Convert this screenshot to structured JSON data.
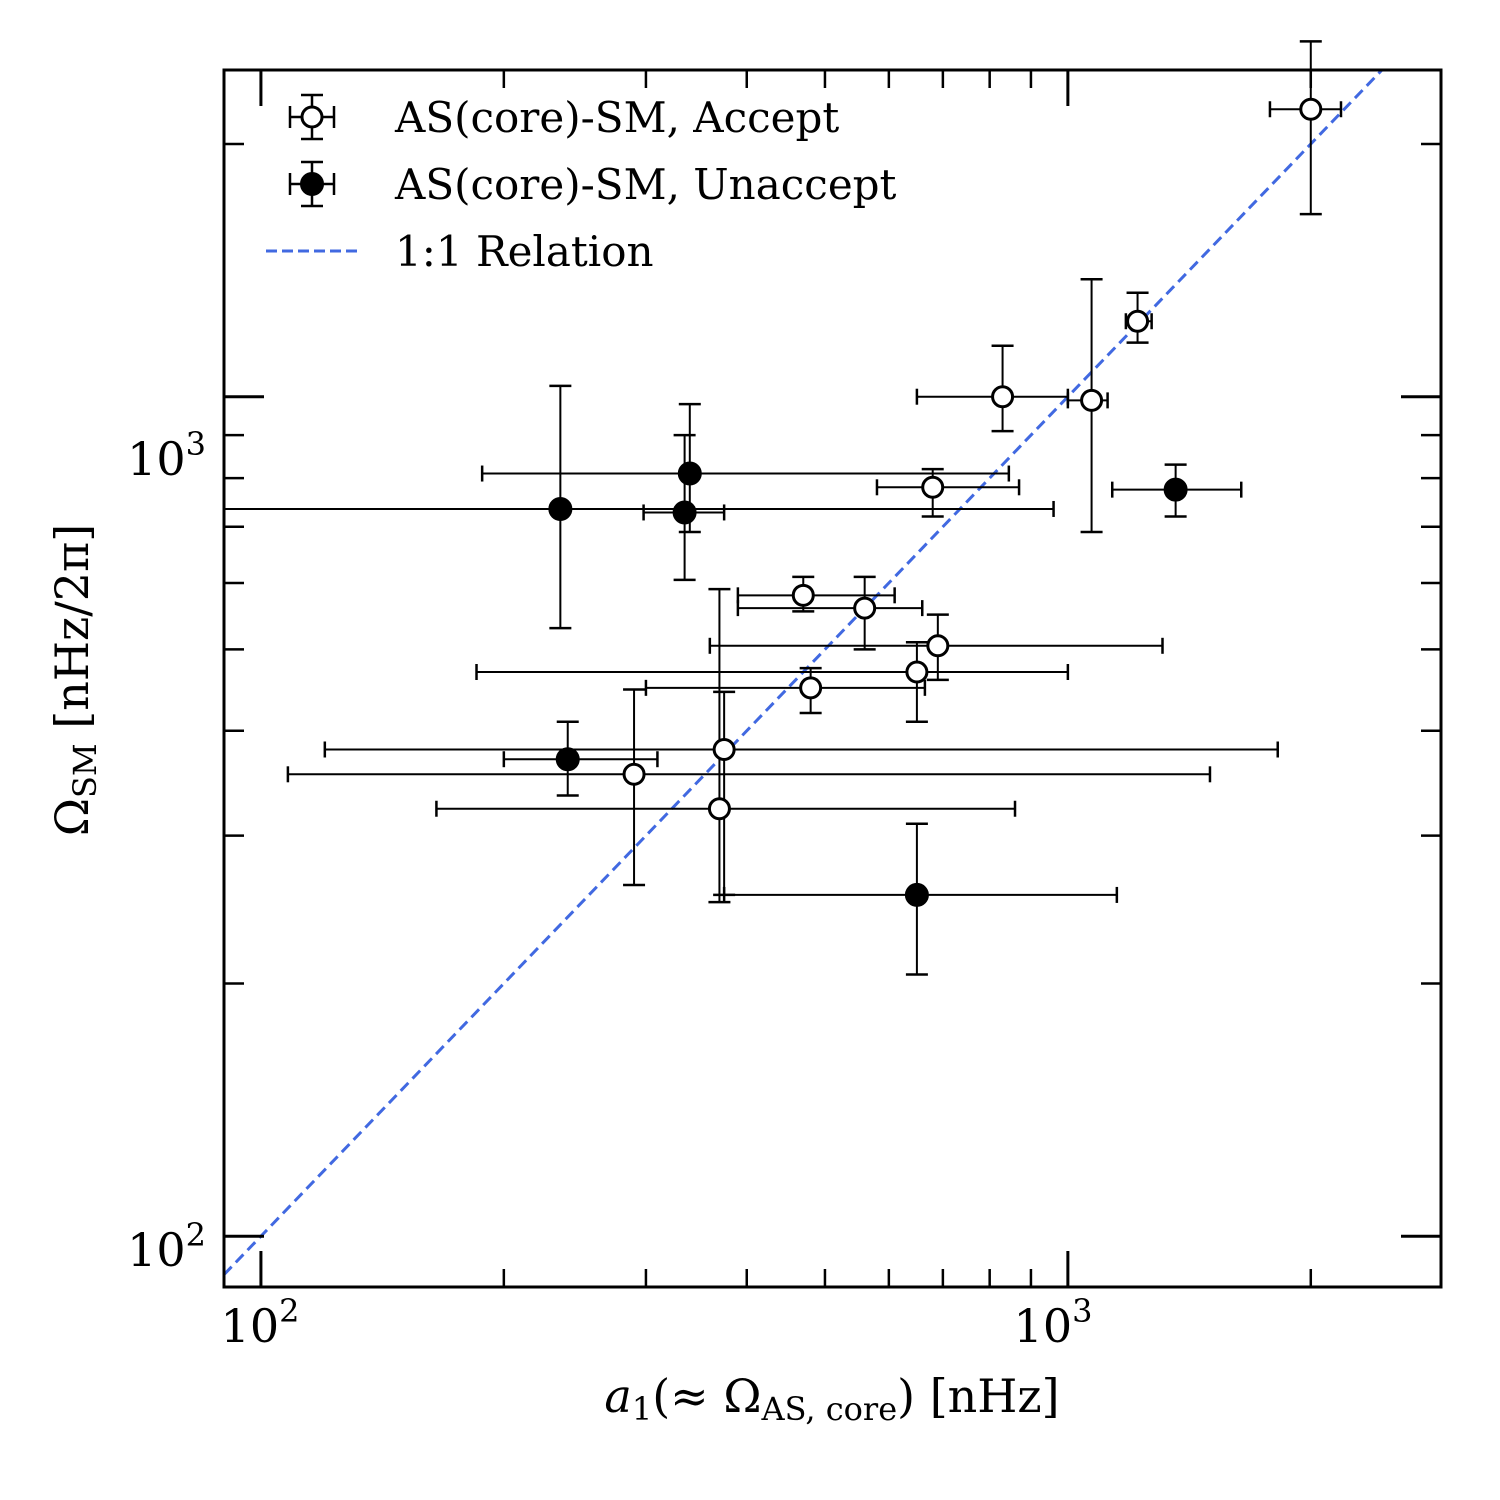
{
  "chart_data": {
    "type": "scatter",
    "title": "",
    "xlabel": {
      "main": "a",
      "sub1": "1",
      "mid": "(≈ Ω",
      "sub2": "AS, core",
      "end": ") [nHz]"
    },
    "ylabel": {
      "main": "Ω",
      "sub": "SM",
      "end": " [nHz/2π]"
    },
    "x_scale": "log",
    "y_scale": "log",
    "xlim": [
      90,
      2900
    ],
    "ylim": [
      87,
      2450
    ],
    "x_ticks": [
      {
        "base": "10",
        "exp": "2",
        "value": 100
      },
      {
        "base": "10",
        "exp": "3",
        "value": 1000
      }
    ],
    "y_ticks": [
      {
        "base": "10",
        "exp": "2",
        "value": 100
      },
      {
        "base": "10",
        "exp": "3",
        "value": 1000
      }
    ],
    "grid": false,
    "legend_position": "top-left",
    "legend": [
      {
        "label": "AS(core)-SM, Accept",
        "style": "open-marker"
      },
      {
        "label": "AS(core)-SM, Unaccept",
        "style": "filled-marker"
      },
      {
        "label": "1:1 Relation",
        "style": "dashed-line"
      }
    ],
    "colors": {
      "one_to_one": "#4169e1",
      "marker": "#000000"
    },
    "reference_line": {
      "name": "1:1 Relation",
      "slope": 1
    },
    "series": [
      {
        "name": "AS(core)-SM, Accept",
        "points": [
          {
            "x": 2000,
            "y": 2200,
            "x_err": [
              1780,
              2180
            ],
            "y_err": [
              1650,
              2650
            ]
          },
          {
            "x": 1220,
            "y": 1230,
            "x_err": [
              1180,
              1270
            ],
            "y_err": [
              1160,
              1330
            ]
          },
          {
            "x": 830,
            "y": 1000,
            "x_err": [
              650,
              1000
            ],
            "y_err": [
              910,
              1150
            ]
          },
          {
            "x": 1070,
            "y": 990,
            "x_err": [
              1000,
              1120
            ],
            "y_err": [
              690,
              1380
            ]
          },
          {
            "x": 680,
            "y": 780,
            "x_err": [
              580,
              870
            ],
            "y_err": [
              720,
              820
            ]
          },
          {
            "x": 470,
            "y": 580,
            "x_err": [
              390,
              610
            ],
            "y_err": [
              555,
              610
            ]
          },
          {
            "x": 560,
            "y": 560,
            "x_err": [
              390,
              660
            ],
            "y_err": [
              500,
              610
            ]
          },
          {
            "x": 690,
            "y": 505,
            "x_err": [
              360,
              1310
            ],
            "y_err": [
              460,
              550
            ]
          },
          {
            "x": 650,
            "y": 470,
            "x_err": [
              185,
              1000
            ],
            "y_err": [
              410,
              510
            ]
          },
          {
            "x": 480,
            "y": 450,
            "x_err": [
              300,
              665
            ],
            "y_err": [
              420,
              475
            ]
          },
          {
            "x": 375,
            "y": 380,
            "x_err": [
              120,
              1820
            ],
            "y_err": [
              255,
              445
            ]
          },
          {
            "x": 290,
            "y": 355,
            "x_err": [
              108,
              1500
            ],
            "y_err": [
              262,
              448
            ]
          },
          {
            "x": 370,
            "y": 323,
            "x_err": [
              165,
              860
            ],
            "y_err": [
              250,
              590
            ]
          }
        ]
      },
      {
        "name": "AS(core)-SM, Unaccept",
        "points": [
          {
            "x": 1360,
            "y": 775,
            "x_err": [
              1135,
              1640
            ],
            "y_err": [
              720,
              830
            ]
          },
          {
            "x": 340,
            "y": 810,
            "x_err": [
              188,
              845
            ],
            "y_err": [
              690,
              980
            ]
          },
          {
            "x": 235,
            "y": 735,
            "x_err": [
              88,
              960
            ],
            "y_err": [
              530,
              1030
            ]
          },
          {
            "x": 335,
            "y": 728,
            "x_err": [
              298,
              375
            ],
            "y_err": [
              605,
              900
            ]
          },
          {
            "x": 240,
            "y": 370,
            "x_err": [
              200,
              310
            ],
            "y_err": [
              335,
              410
            ]
          },
          {
            "x": 650,
            "y": 255,
            "x_err": [
              375,
              1150
            ],
            "y_err": [
              205,
              310
            ]
          }
        ]
      }
    ]
  }
}
